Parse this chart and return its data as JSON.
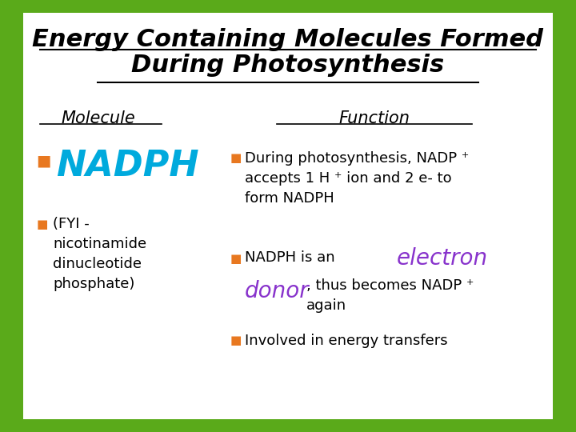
{
  "title_line1": "Energy Containing Molecules Formed",
  "title_line2": "During Photosynthesis",
  "title_fontsize": 22,
  "title_color": "#000000",
  "col_molecule_label": "Molecule",
  "col_function_label": "Function",
  "col_header_fontsize": 15,
  "col_header_color": "#000000",
  "nadph_text": "NADPH",
  "nadph_color": "#00AADD",
  "nadph_fontsize": 32,
  "bullet_color": "#E87820",
  "fyi_text": "(FYI -\nnicotinamide\ndinucleotide\nphosphate)",
  "fyi_color": "#000000",
  "fyi_fontsize": 13,
  "func1_text": "During photosynthesis, NADP ⁺\naccepts 1 H ⁺ ion and 2 e- to\nform NADPH",
  "func1_color": "#000000",
  "func1_fontsize": 13,
  "func2_prefix": "NADPH is an  ",
  "func2_highlight_color": "#8833CC",
  "func2_fontsize": 13,
  "func2_highlight_fontsize": 20,
  "func3_text": "Involved in energy transfers",
  "func3_color": "#000000",
  "func3_fontsize": 13,
  "bg_color": "#FFFFFF",
  "border_color": "#5AAA1A",
  "border_width": 14
}
